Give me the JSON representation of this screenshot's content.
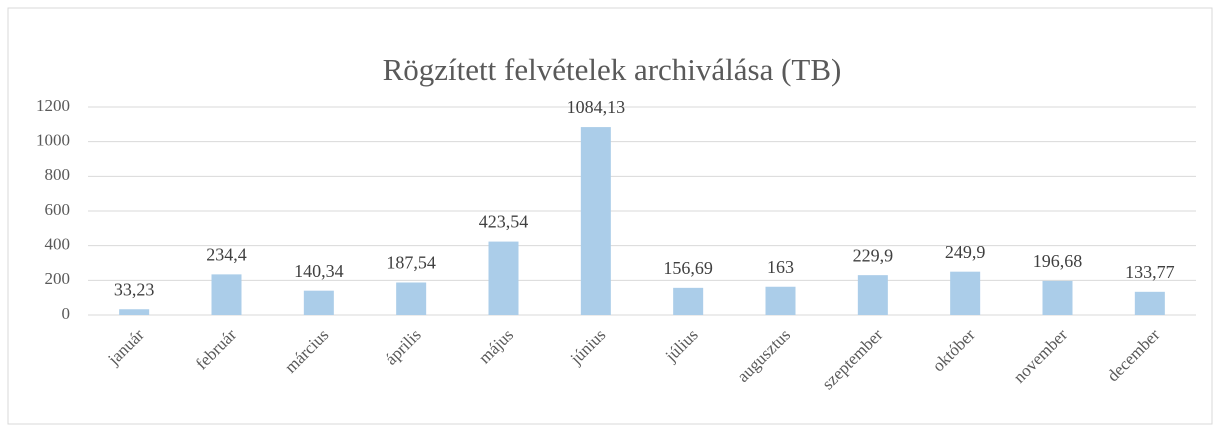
{
  "chart_data": {
    "type": "bar",
    "title": "Rögzített felvételek archiválása (TB)",
    "categories": [
      "január",
      "február",
      "március",
      "április",
      "május",
      "június",
      "július",
      "augusztus",
      "szeptember",
      "október",
      "november",
      "december"
    ],
    "values": [
      33.23,
      234.4,
      140.34,
      187.54,
      423.54,
      1084.13,
      156.69,
      163,
      229.9,
      249.9,
      196.68,
      133.77
    ],
    "value_labels": [
      "33,23",
      "234,4",
      "140,34",
      "187,54",
      "423,54",
      "1084,13",
      "156,69",
      "163",
      "229,9",
      "249,9",
      "196,68",
      "133,77"
    ],
    "color": "#abcde9",
    "ylim": [
      0,
      1200
    ],
    "yticks": [
      0,
      200,
      400,
      600,
      800,
      1000,
      1200
    ],
    "grid": true
  }
}
